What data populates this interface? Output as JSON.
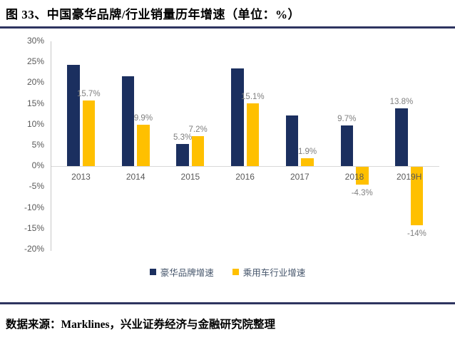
{
  "title": "图 33、中国豪华品牌/行业销量历年增速（单位：%）",
  "source": "数据来源：Marklines，兴业证券经济与金融研究院整理",
  "colors": {
    "navy": "#1b2f5f",
    "yellow": "#ffc000",
    "data_label_gray": "#7f7f7f",
    "axis_text_gray": "#595959",
    "axis_line_gray": "#c6c6c6",
    "zero_line_gray": "#d9d9d9",
    "rule_navy": "#2e3460"
  },
  "legend": [
    {
      "label": "豪华品牌增速",
      "color": "#1b2f5f"
    },
    {
      "label": "乘用车行业增速",
      "color": "#ffc000"
    }
  ],
  "chart_data": {
    "type": "bar",
    "categories": [
      "2013",
      "2014",
      "2015",
      "2016",
      "2017",
      "2018",
      "2019H"
    ],
    "series": [
      {
        "name": "豪华品牌增速",
        "color": "#1b2f5f",
        "values": [
          24.4,
          21.6,
          5.3,
          23.5,
          12.2,
          9.7,
          13.8
        ],
        "labels": [
          null,
          null,
          "5.3%",
          null,
          null,
          "9.7%",
          "13.8%"
        ]
      },
      {
        "name": "乘用车行业增速",
        "color": "#ffc000",
        "values": [
          15.7,
          9.9,
          7.2,
          15.1,
          1.9,
          -4.3,
          -14
        ],
        "labels": [
          "15.7%",
          "9.9%",
          "7.2%",
          "15.1%",
          "1.9%",
          "-4.3%",
          "-14%"
        ]
      }
    ],
    "ylim": [
      -20,
      30
    ],
    "ytick_step": 5,
    "yticks": [
      "30%",
      "25%",
      "20%",
      "15%",
      "10%",
      "5%",
      "0%",
      "-5%",
      "-10%",
      "-15%",
      "-20%"
    ],
    "grid": false,
    "legend_position": "bottom",
    "title": "中国豪华品牌/行业销量历年增速（单位：%）",
    "ylabel": "",
    "xlabel": ""
  }
}
